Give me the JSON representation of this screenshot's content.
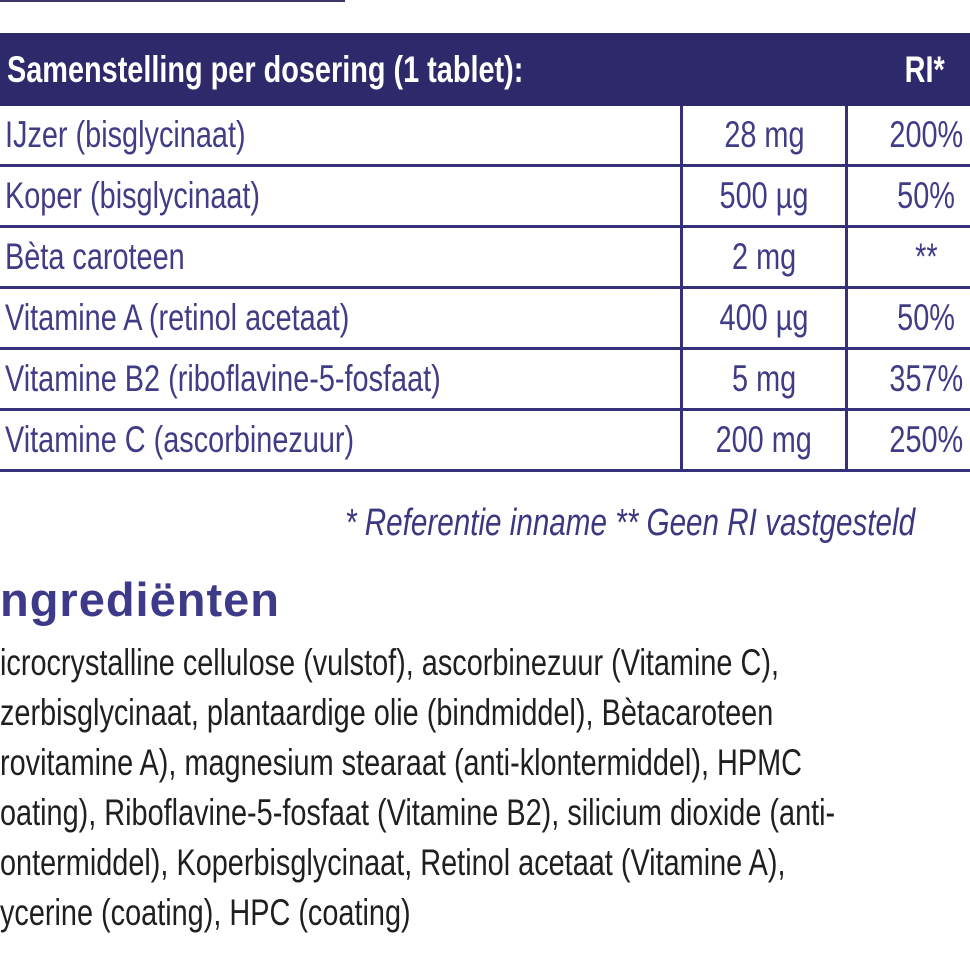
{
  "colors": {
    "header_bar": "#2d296b",
    "table_border": "#34307a",
    "table_text": "#403c86",
    "footnote_text": "#3b3780",
    "heading_text": "#3d3a8a",
    "body_text": "#1f1f1f",
    "background": "#ffffff"
  },
  "table": {
    "header": {
      "title": "Samenstelling per dosering (1 tablet):",
      "ri_label": "RI*"
    },
    "rows": [
      {
        "name": "IJzer (bisglycinaat)",
        "amount": "28 mg",
        "ri": "200%"
      },
      {
        "name": "Koper (bisglycinaat)",
        "amount": "500 µg",
        "ri": "50%"
      },
      {
        "name": "Bèta caroteen",
        "amount": "2 mg",
        "ri": "**"
      },
      {
        "name": "Vitamine A (retinol acetaat)",
        "amount": "400 µg",
        "ri": "50%"
      },
      {
        "name": "Vitamine B2 (riboflavine-5-fosfaat)",
        "amount": "5 mg",
        "ri": "357%"
      },
      {
        "name": "Vitamine C (ascorbinezuur)",
        "amount": "200 mg",
        "ri": "250%"
      }
    ]
  },
  "footnote": "* Referentie inname  ** Geen RI vastgesteld",
  "ingredients": {
    "heading": "ngrediënten",
    "lines": [
      "icrocrystalline cellulose (vulstof), ascorbinezuur (Vitamine C),",
      "zerbisglycinaat, plantaardige olie (bindmiddel), Bètacaroteen",
      "rovitamine A), magnesium stearaat (anti-klontermiddel), HPMC",
      "oating), Riboflavine-5-fosfaat (Vitamine B2), silicium dioxide (anti-",
      "ontermiddel), Koperbisglycinaat, Retinol acetaat (Vitamine A),",
      "ycerine (coating), HPC (coating)"
    ]
  }
}
